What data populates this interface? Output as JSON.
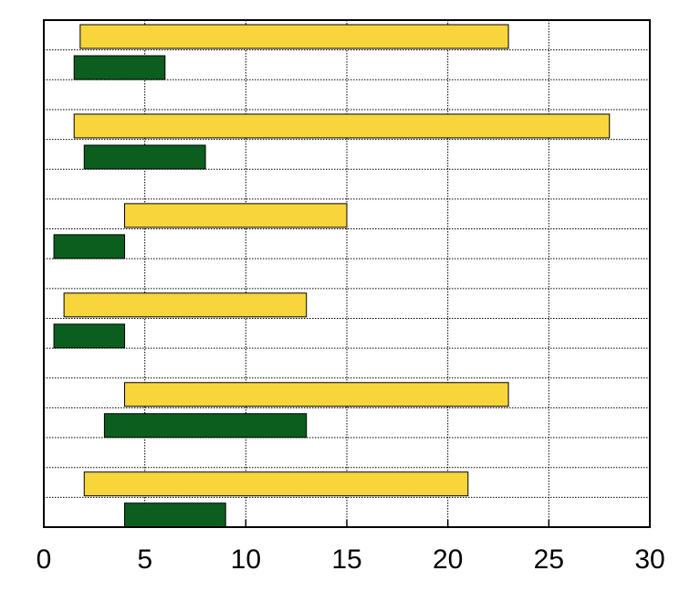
{
  "chart_data": {
    "type": "floating-bar",
    "orientation": "horizontal",
    "series": [
      {
        "color": "#f8d53b",
        "values": [
          [
            1.8,
            23
          ],
          [
            1.5,
            28
          ],
          [
            4,
            15
          ],
          [
            1,
            13
          ],
          [
            4,
            23
          ],
          [
            2,
            21
          ]
        ]
      },
      {
        "color": "#0c5e1e",
        "values": [
          [
            1.5,
            6
          ],
          [
            2,
            8
          ],
          [
            0.5,
            4
          ],
          [
            0.5,
            4
          ],
          [
            3,
            13
          ],
          [
            4,
            9
          ]
        ]
      }
    ],
    "xlim": [
      0,
      30
    ],
    "xticks": [
      0,
      5,
      10,
      15,
      20,
      25,
      30
    ],
    "grid": true
  }
}
